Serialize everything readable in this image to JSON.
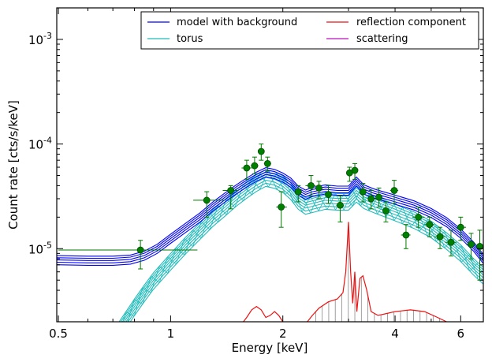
{
  "chart_data": {
    "type": "line",
    "title": "",
    "xlabel": "Energy [keV]",
    "ylabel": "Count rate [cts/s/keV]",
    "x_scale": "log",
    "y_scale": "log",
    "xlim": [
      0.495,
      6.9
    ],
    "ylim": [
      2e-06,
      0.002
    ],
    "grid": false,
    "legend_position": "top-right",
    "x_ticks": [
      {
        "value": 0.5,
        "label": "0.5"
      },
      {
        "value": 1,
        "label": "1"
      },
      {
        "value": 2,
        "label": "2"
      },
      {
        "value": 4,
        "label": "4"
      },
      {
        "value": 6,
        "label": "6"
      }
    ],
    "y_ticks": [
      {
        "value": 1e-05,
        "base": "10",
        "exp": "-5"
      },
      {
        "value": 0.0001,
        "base": "10",
        "exp": "-4"
      },
      {
        "value": 0.001,
        "base": "10",
        "exp": "-3"
      }
    ],
    "colors": {
      "model": "#0000ff",
      "torus": "#22bbbb",
      "reflection": "#ee1111",
      "scattering": "#bb11bb",
      "data": "#007a00",
      "data_fill": "#008000",
      "drop": "#888888"
    },
    "legend": [
      {
        "label": "model with background",
        "color": "#0000ff"
      },
      {
        "label": "reflection component",
        "color": "#ee1111"
      },
      {
        "label": "torus",
        "color": "#22bbbb"
      },
      {
        "label": "scattering",
        "color": "#bb11bb"
      }
    ],
    "series": [
      {
        "key": "model",
        "points": [
          [
            0.495,
            7.8e-06
          ],
          [
            0.6,
            7.7e-06
          ],
          [
            0.7,
            7.7e-06
          ],
          [
            0.78,
            7.9e-06
          ],
          [
            0.85,
            8.6e-06
          ],
          [
            0.92,
            1e-05
          ],
          [
            1.0,
            1.25e-05
          ],
          [
            1.1,
            1.6e-05
          ],
          [
            1.2,
            2e-05
          ],
          [
            1.3,
            2.55e-05
          ],
          [
            1.4,
            3.1e-05
          ],
          [
            1.5,
            3.7e-05
          ],
          [
            1.6,
            4.3e-05
          ],
          [
            1.7,
            4.9e-05
          ],
          [
            1.8,
            5.4e-05
          ],
          [
            1.9,
            5.2e-05
          ],
          [
            2.0,
            4.8e-05
          ],
          [
            2.1,
            4.3e-05
          ],
          [
            2.2,
            3.6e-05
          ],
          [
            2.3,
            3.3e-05
          ],
          [
            2.4,
            3.5e-05
          ],
          [
            2.6,
            3.7e-05
          ],
          [
            2.8,
            3.6e-05
          ],
          [
            3.0,
            3.6e-05
          ],
          [
            3.15,
            4.4e-05
          ],
          [
            3.3,
            3.7e-05
          ],
          [
            3.5,
            3.4e-05
          ],
          [
            3.7,
            3.2e-05
          ],
          [
            4.0,
            2.95e-05
          ],
          [
            4.5,
            2.6e-05
          ],
          [
            5.0,
            2.2e-05
          ],
          [
            5.5,
            1.8e-05
          ],
          [
            6.0,
            1.4e-05
          ],
          [
            6.5,
            1.05e-05
          ],
          [
            6.9,
            8e-06
          ]
        ]
      },
      {
        "key": "torus",
        "points": [
          [
            0.72,
            1.6e-06
          ],
          [
            0.8,
            2.8e-06
          ],
          [
            0.85,
            3.8e-06
          ],
          [
            0.9,
            5e-06
          ],
          [
            1.0,
            7.6e-06
          ],
          [
            1.1,
            1.1e-05
          ],
          [
            1.2,
            1.5e-05
          ],
          [
            1.3,
            2e-05
          ],
          [
            1.4,
            2.5e-05
          ],
          [
            1.5,
            3.1e-05
          ],
          [
            1.6,
            3.7e-05
          ],
          [
            1.7,
            4.3e-05
          ],
          [
            1.8,
            4.8e-05
          ],
          [
            1.9,
            4.6e-05
          ],
          [
            2.0,
            4.2e-05
          ],
          [
            2.1,
            3.6e-05
          ],
          [
            2.2,
            2.9e-05
          ],
          [
            2.3,
            2.6e-05
          ],
          [
            2.4,
            2.7e-05
          ],
          [
            2.6,
            2.9e-05
          ],
          [
            2.8,
            2.85e-05
          ],
          [
            3.0,
            2.85e-05
          ],
          [
            3.15,
            3.4e-05
          ],
          [
            3.3,
            2.95e-05
          ],
          [
            3.5,
            2.7e-05
          ],
          [
            3.7,
            2.5e-05
          ],
          [
            4.0,
            2.25e-05
          ],
          [
            4.5,
            1.9e-05
          ],
          [
            5.0,
            1.55e-05
          ],
          [
            5.5,
            1.2e-05
          ],
          [
            6.0,
            9.2e-06
          ],
          [
            6.5,
            6.8e-06
          ],
          [
            6.9,
            5.6e-06
          ]
        ]
      },
      {
        "key": "reflection",
        "points": [
          [
            1.55,
            1.9e-06
          ],
          [
            1.6,
            2.2e-06
          ],
          [
            1.65,
            2.6e-06
          ],
          [
            1.7,
            2.8e-06
          ],
          [
            1.75,
            2.6e-06
          ],
          [
            1.8,
            2.2e-06
          ],
          [
            1.85,
            2.3e-06
          ],
          [
            1.9,
            2.5e-06
          ],
          [
            1.95,
            2.3e-06
          ],
          [
            2.0,
            2e-06
          ],
          [
            2.3,
            1.9e-06
          ],
          [
            2.4,
            2.3e-06
          ],
          [
            2.5,
            2.7e-06
          ],
          [
            2.65,
            3.1e-06
          ],
          [
            2.8,
            3.3e-06
          ],
          [
            2.9,
            3.8e-06
          ],
          [
            2.95,
            6e-06
          ],
          [
            3.0,
            1.8e-05
          ],
          [
            3.04,
            6e-06
          ],
          [
            3.08,
            3e-06
          ],
          [
            3.12,
            6e-06
          ],
          [
            3.16,
            2.5e-06
          ],
          [
            3.22,
            5.2e-06
          ],
          [
            3.28,
            5.5e-06
          ],
          [
            3.36,
            4e-06
          ],
          [
            3.45,
            2.5e-06
          ],
          [
            3.6,
            2.3e-06
          ],
          [
            3.8,
            2.4e-06
          ],
          [
            4.0,
            2.5e-06
          ],
          [
            4.4,
            2.6e-06
          ],
          [
            4.8,
            2.5e-06
          ],
          [
            5.2,
            2.2e-06
          ],
          [
            5.5,
            2e-06
          ]
        ]
      }
    ],
    "data_points": [
      {
        "x": 0.83,
        "xerr": [
          0.5,
          1.18
        ],
        "y": 9.7e-06,
        "yerr": [
          6.4e-06,
          1.2e-05
        ]
      },
      {
        "x": 1.25,
        "xerr": [
          1.15,
          1.4
        ],
        "y": 2.9e-05,
        "yerr": [
          2e-05,
          3.5e-05
        ]
      },
      {
        "x": 1.45,
        "xerr": [
          1.38,
          1.52
        ],
        "y": 3.6e-05,
        "yerr": [
          2.4e-05,
          4e-05
        ]
      },
      {
        "x": 1.6,
        "xerr": [
          1.55,
          1.65
        ],
        "y": 5.9e-05,
        "yerr": [
          4.6e-05,
          7e-05
        ]
      },
      {
        "x": 1.68,
        "xerr": [
          1.64,
          1.72
        ],
        "y": 6.2e-05,
        "yerr": [
          5.2e-05,
          7.5e-05
        ]
      },
      {
        "x": 1.75,
        "xerr": [
          1.72,
          1.78
        ],
        "y": 8.5e-05,
        "yerr": [
          7e-05,
          0.0001
        ]
      },
      {
        "x": 1.82,
        "xerr": [
          1.78,
          1.86
        ],
        "y": 6.5e-05,
        "yerr": [
          5.5e-05,
          7.5e-05
        ]
      },
      {
        "x": 1.98,
        "xerr": [
          1.92,
          2.05
        ],
        "y": 2.5e-05,
        "yerr": [
          1.6e-05,
          3.5e-05
        ]
      },
      {
        "x": 2.2,
        "xerr": [
          2.15,
          2.25
        ],
        "y": 3.5e-05,
        "yerr": [
          2.8e-05,
          4e-05
        ]
      },
      {
        "x": 2.38,
        "xerr": [
          2.3,
          2.45
        ],
        "y": 4e-05,
        "yerr": [
          3.2e-05,
          5e-05
        ]
      },
      {
        "x": 2.5,
        "xerr": [
          2.45,
          2.55
        ],
        "y": 3.8e-05,
        "yerr": [
          3e-05,
          4.4e-05
        ]
      },
      {
        "x": 2.65,
        "xerr": [
          2.6,
          2.7
        ],
        "y": 3.3e-05,
        "yerr": [
          2.7e-05,
          4e-05
        ]
      },
      {
        "x": 2.85,
        "xerr": [
          2.78,
          2.92
        ],
        "y": 2.6e-05,
        "yerr": [
          1.8e-05,
          3.2e-05
        ]
      },
      {
        "x": 3.02,
        "xerr": [
          2.98,
          3.07
        ],
        "y": 5.3e-05,
        "yerr": [
          4.4e-05,
          6e-05
        ]
      },
      {
        "x": 3.12,
        "xerr": [
          3.08,
          3.16
        ],
        "y": 5.6e-05,
        "yerr": [
          4.6e-05,
          6.5e-05
        ]
      },
      {
        "x": 3.28,
        "xerr": [
          3.22,
          3.34
        ],
        "y": 3.5e-05,
        "yerr": [
          2.8e-05,
          4.2e-05
        ]
      },
      {
        "x": 3.45,
        "xerr": [
          3.38,
          3.52
        ],
        "y": 3e-05,
        "yerr": [
          2.4e-05,
          3.6e-05
        ]
      },
      {
        "x": 3.62,
        "xerr": [
          3.55,
          3.7
        ],
        "y": 3.1e-05,
        "yerr": [
          2.5e-05,
          3.8e-05
        ]
      },
      {
        "x": 3.78,
        "xerr": [
          3.7,
          3.86
        ],
        "y": 2.3e-05,
        "yerr": [
          1.8e-05,
          2.8e-05
        ]
      },
      {
        "x": 3.98,
        "xerr": [
          3.88,
          4.08
        ],
        "y": 3.6e-05,
        "yerr": [
          2.7e-05,
          4.5e-05
        ]
      },
      {
        "x": 4.28,
        "xerr": [
          4.15,
          4.4
        ],
        "y": 1.35e-05,
        "yerr": [
          1e-05,
          1.7e-05
        ]
      },
      {
        "x": 4.62,
        "xerr": [
          4.45,
          4.8
        ],
        "y": 2e-05,
        "yerr": [
          1.6e-05,
          2.5e-05
        ]
      },
      {
        "x": 4.95,
        "xerr": [
          4.8,
          5.1
        ],
        "y": 1.7e-05,
        "yerr": [
          1.3e-05,
          2e-05
        ]
      },
      {
        "x": 5.28,
        "xerr": [
          5.1,
          5.45
        ],
        "y": 1.3e-05,
        "yerr": [
          1e-05,
          1.6e-05
        ]
      },
      {
        "x": 5.65,
        "xerr": [
          5.45,
          5.85
        ],
        "y": 1.15e-05,
        "yerr": [
          8.5e-06,
          1.5e-05
        ]
      },
      {
        "x": 6.0,
        "xerr": [
          5.85,
          6.2
        ],
        "y": 1.6e-05,
        "yerr": [
          1.2e-05,
          2e-05
        ]
      },
      {
        "x": 6.4,
        "xerr": [
          6.2,
          6.6
        ],
        "y": 1.1e-05,
        "yerr": [
          8e-06,
          1.4e-05
        ]
      },
      {
        "x": 6.75,
        "xerr": [
          6.6,
          6.9
        ],
        "y": 1.05e-05,
        "yerr": [
          5e-06,
          1.5e-05
        ]
      }
    ]
  }
}
